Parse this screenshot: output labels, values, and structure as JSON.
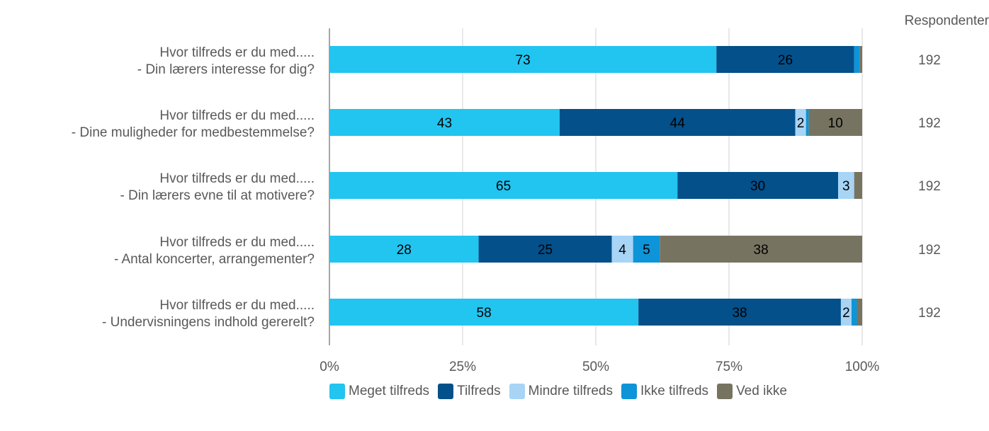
{
  "chart_data": {
    "type": "bar",
    "orientation": "horizontal",
    "stacked": true,
    "percent_axis": true,
    "categories": [
      [
        "Hvor tilfreds er du med.....",
        "- Din lærers interesse for dig?"
      ],
      [
        "Hvor tilfreds er du med.....",
        "- Dine muligheder for medbestemmelse?"
      ],
      [
        "Hvor tilfreds er du med.....",
        "- Din lærers evne til at motivere?"
      ],
      [
        "Hvor tilfreds er du med.....",
        "- Antal koncerter, arrangementer?"
      ],
      [
        "Hvor tilfreds er du med.....",
        "- Undervisningens indhold gererelt?"
      ]
    ],
    "series": [
      {
        "name": "Meget tilfreds",
        "color": "#22c4f0",
        "values": [
          73,
          43,
          65,
          28,
          58
        ],
        "labels": [
          "73",
          "43",
          "65",
          "28",
          "58"
        ]
      },
      {
        "name": "Tilfreds",
        "color": "#03508a",
        "values": [
          26,
          44,
          30,
          25,
          38
        ],
        "labels": [
          "26",
          "44",
          "30",
          "25",
          "38"
        ]
      },
      {
        "name": "Mindre tilfreds",
        "color": "#a8d4f5",
        "values": [
          0,
          2,
          3,
          4,
          2
        ],
        "labels": [
          "",
          "2",
          "3",
          "4",
          "2"
        ]
      },
      {
        "name": "Ikke tilfreds",
        "color": "#0e94d8",
        "values": [
          1,
          0.5,
          0,
          5,
          1
        ],
        "labels": [
          "",
          "",
          "",
          "5",
          ""
        ]
      },
      {
        "name": "Ved ikke",
        "color": "#767461",
        "values": [
          0.5,
          10,
          1.5,
          38,
          1
        ],
        "labels": [
          "",
          "10",
          "",
          "38",
          ""
        ]
      }
    ],
    "x_ticks": [
      "0%",
      "25%",
      "50%",
      "75%",
      "100%"
    ],
    "xlim": [
      0,
      100
    ],
    "grid": true,
    "legend_position": "bottom",
    "respondents": {
      "header": "Respondenter",
      "values": [
        "192",
        "192",
        "192",
        "192",
        "192"
      ]
    }
  }
}
